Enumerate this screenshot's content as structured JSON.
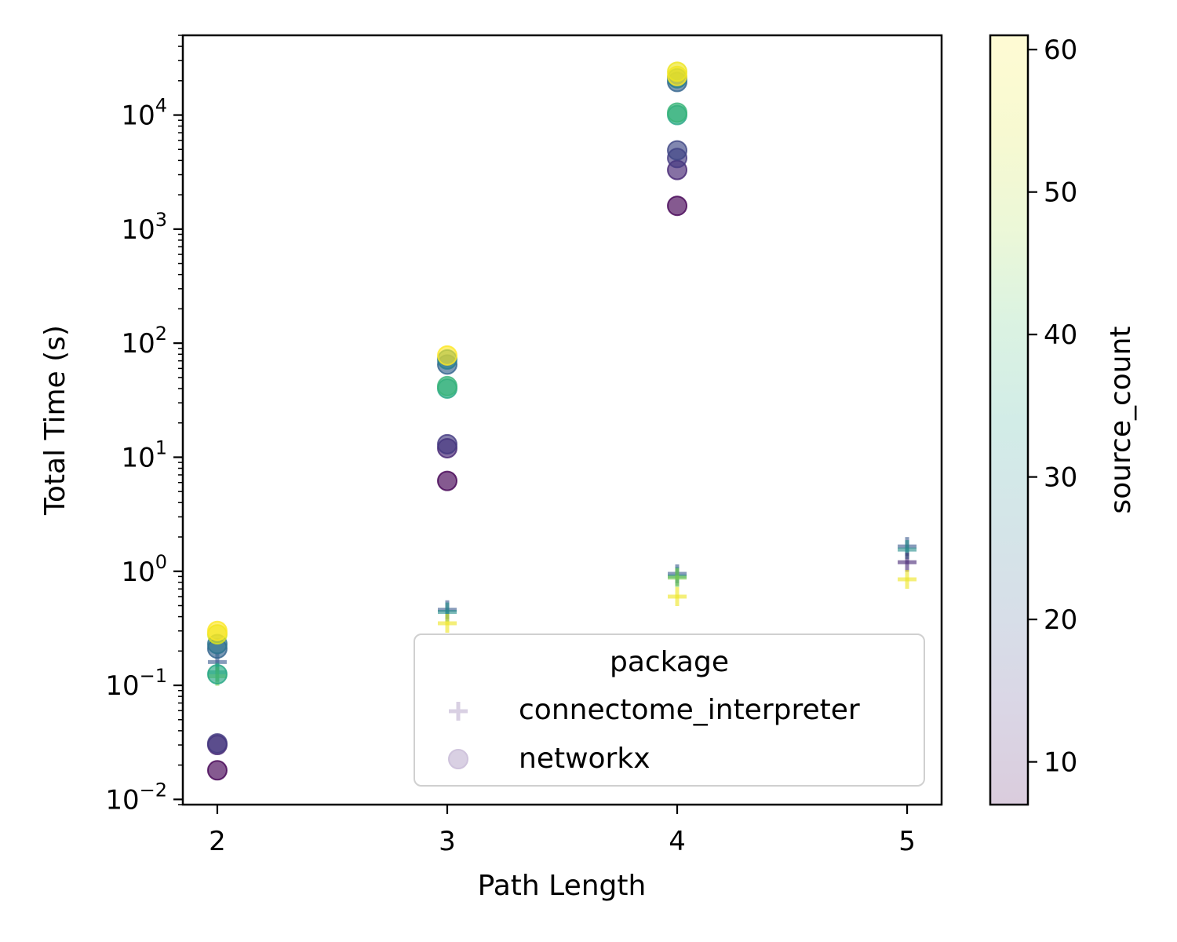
{
  "chart_data": {
    "type": "scatter",
    "xlabel": "Path Length",
    "ylabel": "Total Time (s)",
    "x_ticks": [
      2,
      3,
      4,
      5
    ],
    "xlim": [
      1.85,
      5.15
    ],
    "y_scale": "log",
    "ylim": [
      0.009,
      50000
    ],
    "y_ticks": [
      {
        "value": 0.01,
        "base": "10",
        "exp": "−2"
      },
      {
        "value": 0.1,
        "base": "10",
        "exp": "−1"
      },
      {
        "value": 1,
        "base": "10",
        "exp": "0"
      },
      {
        "value": 10,
        "base": "10",
        "exp": "1"
      },
      {
        "value": 100,
        "base": "10",
        "exp": "2"
      },
      {
        "value": 1000,
        "base": "10",
        "exp": "3"
      },
      {
        "value": 10000,
        "base": "10",
        "exp": "4"
      }
    ],
    "colorbar": {
      "label": "source_count",
      "range": [
        7,
        61
      ],
      "ticks": [
        10,
        20,
        30,
        40,
        50,
        60
      ],
      "colormap": "viridis",
      "alpha": 0.2
    },
    "legend": {
      "title": "package",
      "position": "lower-right",
      "entries": [
        {
          "label": "connectome_interpreter",
          "marker": "plus"
        },
        {
          "label": "networkx",
          "marker": "circle"
        }
      ]
    },
    "series": [
      {
        "name": "connectome_interpreter",
        "marker": "plus",
        "points": [
          {
            "x": 2,
            "y": 0.16,
            "c": 20
          },
          {
            "x": 2,
            "y": 0.13,
            "c": 35
          },
          {
            "x": 2,
            "y": 0.12,
            "c": 45
          },
          {
            "x": 3,
            "y": 0.46,
            "c": 20
          },
          {
            "x": 3,
            "y": 0.44,
            "c": 30
          },
          {
            "x": 3,
            "y": 0.35,
            "c": 58
          },
          {
            "x": 4,
            "y": 0.95,
            "c": 20
          },
          {
            "x": 4,
            "y": 0.9,
            "c": 30
          },
          {
            "x": 4,
            "y": 0.88,
            "c": 45
          },
          {
            "x": 4,
            "y": 0.6,
            "c": 58
          },
          {
            "x": 5,
            "y": 1.65,
            "c": 20
          },
          {
            "x": 5,
            "y": 1.55,
            "c": 30
          },
          {
            "x": 5,
            "y": 1.2,
            "c": 12
          },
          {
            "x": 5,
            "y": 0.85,
            "c": 58
          }
        ]
      },
      {
        "name": "networkx",
        "marker": "circle",
        "points": [
          {
            "x": 2,
            "y": 0.018,
            "c": 7
          },
          {
            "x": 2,
            "y": 0.03,
            "c": 12
          },
          {
            "x": 2,
            "y": 0.031,
            "c": 15
          },
          {
            "x": 2,
            "y": 0.125,
            "c": 35
          },
          {
            "x": 2,
            "y": 0.21,
            "c": 22
          },
          {
            "x": 2,
            "y": 0.23,
            "c": 25
          },
          {
            "x": 2,
            "y": 0.28,
            "c": 55
          },
          {
            "x": 2,
            "y": 0.3,
            "c": 61
          },
          {
            "x": 3,
            "y": 6.2,
            "c": 7
          },
          {
            "x": 3,
            "y": 12,
            "c": 12
          },
          {
            "x": 3,
            "y": 13,
            "c": 15
          },
          {
            "x": 3,
            "y": 40,
            "c": 35
          },
          {
            "x": 3,
            "y": 42,
            "c": 38
          },
          {
            "x": 3,
            "y": 65,
            "c": 22
          },
          {
            "x": 3,
            "y": 72,
            "c": 27
          },
          {
            "x": 3,
            "y": 78,
            "c": 61
          },
          {
            "x": 4,
            "y": 1600,
            "c": 7
          },
          {
            "x": 4,
            "y": 3300,
            "c": 12
          },
          {
            "x": 4,
            "y": 4200,
            "c": 15
          },
          {
            "x": 4,
            "y": 4900,
            "c": 17
          },
          {
            "x": 4,
            "y": 10000,
            "c": 35
          },
          {
            "x": 4,
            "y": 10500,
            "c": 38
          },
          {
            "x": 4,
            "y": 19500,
            "c": 22
          },
          {
            "x": 4,
            "y": 21000,
            "c": 27
          },
          {
            "x": 4,
            "y": 22000,
            "c": 61
          },
          {
            "x": 4,
            "y": 24000,
            "c": 58
          }
        ]
      }
    ]
  }
}
